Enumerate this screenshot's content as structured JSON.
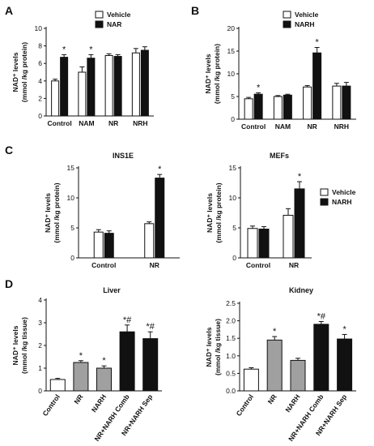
{
  "chart_data": [
    {
      "id": "A",
      "panel": "A",
      "type": "bar",
      "title": "",
      "ylabel": [
        "NAD⁺ levels",
        "(mmol /kg protein)"
      ],
      "ylim": [
        0,
        10
      ],
      "yticks": [
        0,
        2,
        4,
        6,
        8,
        10
      ],
      "categories": [
        "Control",
        "NAM",
        "NR",
        "NRH"
      ],
      "series": [
        {
          "name": "Vehicle",
          "fill": "#ffffff",
          "values": [
            4.0,
            5.0,
            6.9,
            7.2
          ],
          "errors": [
            0.2,
            0.6,
            0.2,
            0.5
          ]
        },
        {
          "name": "NAR",
          "fill": "#111111",
          "values": [
            6.7,
            6.6,
            6.8,
            7.5
          ],
          "errors": [
            0.3,
            0.4,
            0.2,
            0.4
          ]
        }
      ],
      "marks": [
        {
          "category": 0,
          "series": 1,
          "text": "*"
        },
        {
          "category": 1,
          "series": 1,
          "text": "*"
        }
      ],
      "legend": "top-left"
    },
    {
      "id": "B",
      "panel": "B",
      "type": "bar",
      "title": "",
      "ylabel": [
        "NAD⁺ levels",
        "(mmol /kg protein)"
      ],
      "ylim": [
        0,
        20
      ],
      "yticks": [
        0,
        5,
        10,
        15,
        20
      ],
      "categories": [
        "Control",
        "NAM",
        "NR",
        "NRH"
      ],
      "series": [
        {
          "name": "Vehicle",
          "fill": "#ffffff",
          "values": [
            4.5,
            5.0,
            7.1,
            7.3
          ],
          "errors": [
            0.3,
            0.2,
            0.3,
            0.6
          ]
        },
        {
          "name": "NARH",
          "fill": "#111111",
          "values": [
            5.5,
            5.3,
            14.6,
            7.3
          ],
          "errors": [
            0.3,
            0.2,
            1.2,
            0.8
          ]
        }
      ],
      "marks": [
        {
          "category": 0,
          "series": 1,
          "text": "*"
        },
        {
          "category": 2,
          "series": 1,
          "text": "*"
        }
      ],
      "legend": "top-left"
    },
    {
      "id": "C1",
      "panel": "C",
      "type": "bar",
      "title": "INS1E",
      "ylabel": [
        "NAD⁺ levels",
        "(mmol /kg protein)"
      ],
      "ylim": [
        0,
        15
      ],
      "yticks": [
        0,
        5,
        10,
        15
      ],
      "categories": [
        "Control",
        "NR"
      ],
      "series": [
        {
          "name": "Vehicle",
          "fill": "#ffffff",
          "values": [
            4.3,
            5.7
          ],
          "errors": [
            0.4,
            0.3
          ]
        },
        {
          "name": "NARH",
          "fill": "#111111",
          "values": [
            4.1,
            13.3
          ],
          "errors": [
            0.4,
            0.6
          ]
        }
      ],
      "marks": [
        {
          "category": 1,
          "series": 1,
          "text": "*"
        }
      ],
      "legend": ""
    },
    {
      "id": "C2",
      "panel": "",
      "type": "bar",
      "title": "MEFs",
      "ylabel": [
        "NAD⁺ levels",
        "(mmol /kg protein)"
      ],
      "ylim": [
        0,
        15
      ],
      "yticks": [
        0,
        5,
        10,
        15
      ],
      "categories": [
        "Control",
        "NR"
      ],
      "series": [
        {
          "name": "Vehicle",
          "fill": "#ffffff",
          "values": [
            4.9,
            7.1
          ],
          "errors": [
            0.4,
            1.1
          ]
        },
        {
          "name": "NARH",
          "fill": "#111111",
          "values": [
            4.8,
            11.5
          ],
          "errors": [
            0.4,
            1.2
          ]
        }
      ],
      "marks": [
        {
          "category": 1,
          "series": 1,
          "text": "*"
        }
      ],
      "legend": "right"
    },
    {
      "id": "D1",
      "panel": "D",
      "type": "bar",
      "title": "Liver",
      "ylabel": [
        "NAD⁺ levels",
        "(mmol /kg tissue)"
      ],
      "ylim": [
        0,
        4
      ],
      "yticks": [
        0,
        1,
        2,
        3,
        4
      ],
      "categories": [
        "Control",
        "NR",
        "NARH",
        "NR+NARH Comb",
        "NR+NARH Sep"
      ],
      "values": [
        0.5,
        1.25,
        1.0,
        2.6,
        2.3
      ],
      "errors": [
        0.05,
        0.08,
        0.1,
        0.3,
        0.3
      ],
      "fills": [
        "#ffffff",
        "#a0a0a0",
        "#a0a0a0",
        "#111111",
        "#111111"
      ],
      "marks": [
        "",
        "*",
        "*",
        "*#",
        "*#"
      ],
      "legend": ""
    },
    {
      "id": "D2",
      "panel": "",
      "type": "bar",
      "title": "Kidney",
      "ylabel": [
        "NAD⁺ levels",
        "(mmol /kg tissue)"
      ],
      "ylim": [
        0,
        2.5
      ],
      "yticks": [
        0.0,
        0.5,
        1.0,
        1.5,
        2.0,
        2.5
      ],
      "categories": [
        "Control",
        "NR",
        "NARH",
        "NR+NARH Comb",
        "NR+NARH Sep"
      ],
      "values": [
        0.62,
        1.45,
        0.87,
        1.9,
        1.48
      ],
      "errors": [
        0.04,
        0.1,
        0.06,
        0.08,
        0.13
      ],
      "fills": [
        "#ffffff",
        "#a0a0a0",
        "#a0a0a0",
        "#111111",
        "#111111"
      ],
      "marks": [
        "",
        "*",
        "",
        "*#",
        "*"
      ],
      "legend": ""
    }
  ]
}
